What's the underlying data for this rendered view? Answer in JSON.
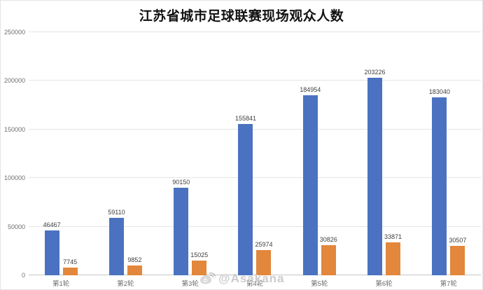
{
  "chart_data": {
    "type": "bar",
    "title": "江苏省城市足球联赛现场观众人数",
    "categories": [
      "第1轮",
      "第2轮",
      "第3轮",
      "第4轮",
      "第5轮",
      "第6轮",
      "第7轮"
    ],
    "series": [
      {
        "name": "blue",
        "color": "#4a72c0",
        "values": [
          46467,
          59110,
          90150,
          155841,
          184954,
          203226,
          183040
        ]
      },
      {
        "name": "orange",
        "color": "#e2873c",
        "values": [
          7745,
          9852,
          15025,
          25974,
          30826,
          33871,
          30507
        ]
      }
    ],
    "xlabel": "",
    "ylabel": "",
    "ylim": [
      0,
      250000
    ],
    "yticks": [
      0,
      50000,
      100000,
      150000,
      200000,
      250000
    ],
    "grid": "horizontal",
    "legend": "none",
    "data_labels": true
  },
  "watermark": {
    "icon": "weibo-icon",
    "text": "@Asakana"
  }
}
